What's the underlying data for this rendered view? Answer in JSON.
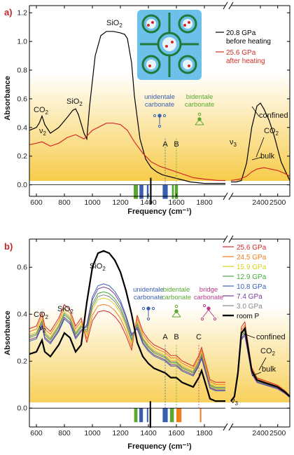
{
  "chart_data": [
    {
      "panel": "a)",
      "type": "line",
      "xlabel": "Frequency (cm⁻¹)",
      "ylabel": "Absorbance",
      "ylim": [
        -0.08,
        1.25
      ],
      "yticks": [
        "0.0",
        "0.2",
        "0.4",
        "0.6",
        "0.8",
        "1.0",
        "1.2"
      ],
      "xticks_left": [
        "600",
        "800",
        "1000",
        "1200",
        "1400",
        "1600",
        "1800"
      ],
      "xticks_right": [
        "2400",
        "2500"
      ],
      "x_segments": [
        [
          550,
          1950
        ],
        [
          2230,
          2570
        ]
      ],
      "series": [
        {
          "name": "20.8 GPa before heating",
          "color": "#000000",
          "x": [
            550,
            600,
            620,
            640,
            660,
            700,
            760,
            820,
            860,
            880,
            900,
            940,
            960,
            980,
            1020,
            1060,
            1100,
            1150,
            1200,
            1230,
            1250,
            1280,
            1300,
            1340,
            1380,
            1420,
            1460,
            1500,
            1540,
            1580,
            1620,
            1660,
            1700,
            1800,
            1900,
            1950
          ],
          "y": [
            0.38,
            0.4,
            0.43,
            0.48,
            0.42,
            0.36,
            0.4,
            0.47,
            0.52,
            0.53,
            0.49,
            0.36,
            0.32,
            0.55,
            0.9,
            1.04,
            1.07,
            1.07,
            1.06,
            1.05,
            1.02,
            0.85,
            0.62,
            0.32,
            0.18,
            0.12,
            0.09,
            0.07,
            0.06,
            0.05,
            0.04,
            0.03,
            0.02,
            0.01,
            0.01,
            0.01
          ]
        },
        {
          "name": "",
          "color": "#000000",
          "x": [
            2230,
            2260,
            2290,
            2320,
            2350,
            2380,
            2400,
            2420,
            2450,
            2480,
            2500,
            2520,
            2550,
            2570
          ],
          "y": [
            0.02,
            0.02,
            0.03,
            0.15,
            0.4,
            0.55,
            0.57,
            0.53,
            0.45,
            0.34,
            0.25,
            0.16,
            0.08,
            0.03
          ]
        },
        {
          "name": "25.6 GPa after heating",
          "color": "#d22c26",
          "x": [
            550,
            600,
            640,
            700,
            760,
            820,
            880,
            940,
            1000,
            1060,
            1100,
            1150,
            1200,
            1250,
            1300,
            1360,
            1420,
            1480,
            1540,
            1600,
            1660,
            1720,
            1800,
            1900,
            1950
          ],
          "y": [
            0.28,
            0.29,
            0.3,
            0.27,
            0.29,
            0.33,
            0.35,
            0.32,
            0.38,
            0.41,
            0.43,
            0.43,
            0.42,
            0.38,
            0.3,
            0.22,
            0.16,
            0.13,
            0.11,
            0.09,
            0.07,
            0.05,
            0.04,
            0.03,
            0.03
          ]
        },
        {
          "name": "",
          "color": "#d22c26",
          "x": [
            2230,
            2280,
            2320,
            2350,
            2380,
            2420,
            2460,
            2500,
            2540,
            2570
          ],
          "y": [
            0.03,
            0.04,
            0.06,
            0.09,
            0.11,
            0.12,
            0.11,
            0.1,
            0.08,
            0.06
          ]
        }
      ],
      "markers": [
        {
          "label": "A",
          "x": 1520,
          "color": "#3b5fb0"
        },
        {
          "label": "B",
          "x": 1600,
          "color": "#5aa832"
        }
      ],
      "bar_markers": [
        {
          "x": 1310,
          "w": 30,
          "color": "#5aa832"
        },
        {
          "x": 1350,
          "w": 28,
          "color": "#3b5fb0"
        },
        {
          "x": 1395,
          "w": 12,
          "color": "#3b5fb0"
        },
        {
          "x": 1415,
          "w": 6,
          "color": "#000000",
          "tall": true
        },
        {
          "x": 1520,
          "w": 36,
          "color": "#3b5fb0"
        },
        {
          "x": 1575,
          "w": 14,
          "color": "#5aa832"
        },
        {
          "x": 1600,
          "w": 22,
          "color": "#5aa832"
        }
      ]
    },
    {
      "panel": "b)",
      "type": "line",
      "xlabel": "Frequency (cm⁻¹)",
      "ylabel": "Absorbance",
      "ylim": [
        -0.08,
        0.72
      ],
      "yticks": [
        "0.0",
        "0.2",
        "0.4",
        "0.6"
      ],
      "xticks_left": [
        "600",
        "800",
        "1000",
        "1200",
        "1400",
        "1600",
        "1800"
      ],
      "xticks_right": [
        "2400",
        "2500"
      ],
      "x_segments": [
        [
          550,
          1950
        ],
        [
          2230,
          2570
        ]
      ],
      "series": [
        {
          "name": "25.6 GPa",
          "color": "#d22c26",
          "scale": 0.62
        },
        {
          "name": "24.5 GPa",
          "color": "#f07d1c",
          "scale": 0.66
        },
        {
          "name": "15.9 GPa",
          "color": "#d9d21a",
          "scale": 0.7
        },
        {
          "name": "12.9 GPa",
          "color": "#4aa840",
          "scale": 0.74
        },
        {
          "name": "10.8 GPa",
          "color": "#3a63b5",
          "scale": 0.79
        },
        {
          "name": "7.4 GPa",
          "color": "#7a3c96",
          "scale": 0.77
        },
        {
          "name": "3.0 GPa",
          "color": "#888888",
          "scale": 0.72
        },
        {
          "name": "room P",
          "color": "#000000",
          "scale": 1.0
        }
      ],
      "markers": [
        {
          "label": "A",
          "x": 1520,
          "color": "#3b5fb0"
        },
        {
          "label": "B",
          "x": 1600,
          "color": "#5aa832"
        },
        {
          "label": "C",
          "x": 1760,
          "color": "#b83a8c"
        }
      ],
      "bar_markers": [
        {
          "x": 1310,
          "w": 24,
          "color": "#5aa832"
        },
        {
          "x": 1348,
          "w": 26,
          "color": "#3b5fb0"
        },
        {
          "x": 1393,
          "w": 8,
          "color": "#3b5fb0"
        },
        {
          "x": 1412,
          "w": 6,
          "color": "#000000",
          "tall": true
        },
        {
          "x": 1520,
          "w": 36,
          "color": "#3b5fb0"
        },
        {
          "x": 1568,
          "w": 28,
          "color": "#5aa832"
        },
        {
          "x": 1618,
          "w": 36,
          "color": "#f07d1c"
        },
        {
          "x": 1770,
          "w": 4,
          "color": "#f07d1c"
        }
      ]
    }
  ],
  "a": {
    "label": "a)",
    "legend_black_1": "20.8 GPa",
    "legend_black_2": "before heating",
    "legend_red_1": "25.6 GPa",
    "legend_red_2": "after heating",
    "sio2_top": "SiO",
    "sio2_sub": "2",
    "sio2_left": "SiO",
    "co2_left": "CO",
    "nu2": "ν",
    "nu2_sub": "2",
    "nu3": "ν",
    "nu3_sub": "3",
    "unidentale_1": "unidentale",
    "unidentale_2": "carbonate",
    "bidentale_1": "bidentale",
    "bidentale_2": "carbonate",
    "marker_A": "A",
    "marker_B": "B",
    "confined": "confined",
    "co2_right": "CO",
    "bulk": "bulk"
  },
  "b": {
    "label": "b)",
    "sio2_top": "SiO",
    "sio2_left": "SiO",
    "co2_left": "CO",
    "unidentale_1": "unidentale",
    "unidentale_2": "carbonate",
    "bidentale_1": "bidentale",
    "bidentale_2": "carbonate",
    "bridge_1": "bridge",
    "bridge_2": "carbonate",
    "marker_A": "A",
    "marker_B": "B",
    "marker_C": "C",
    "confined": "confined",
    "co2_right": "CO",
    "bulk": "bulk"
  },
  "sub2": "2"
}
